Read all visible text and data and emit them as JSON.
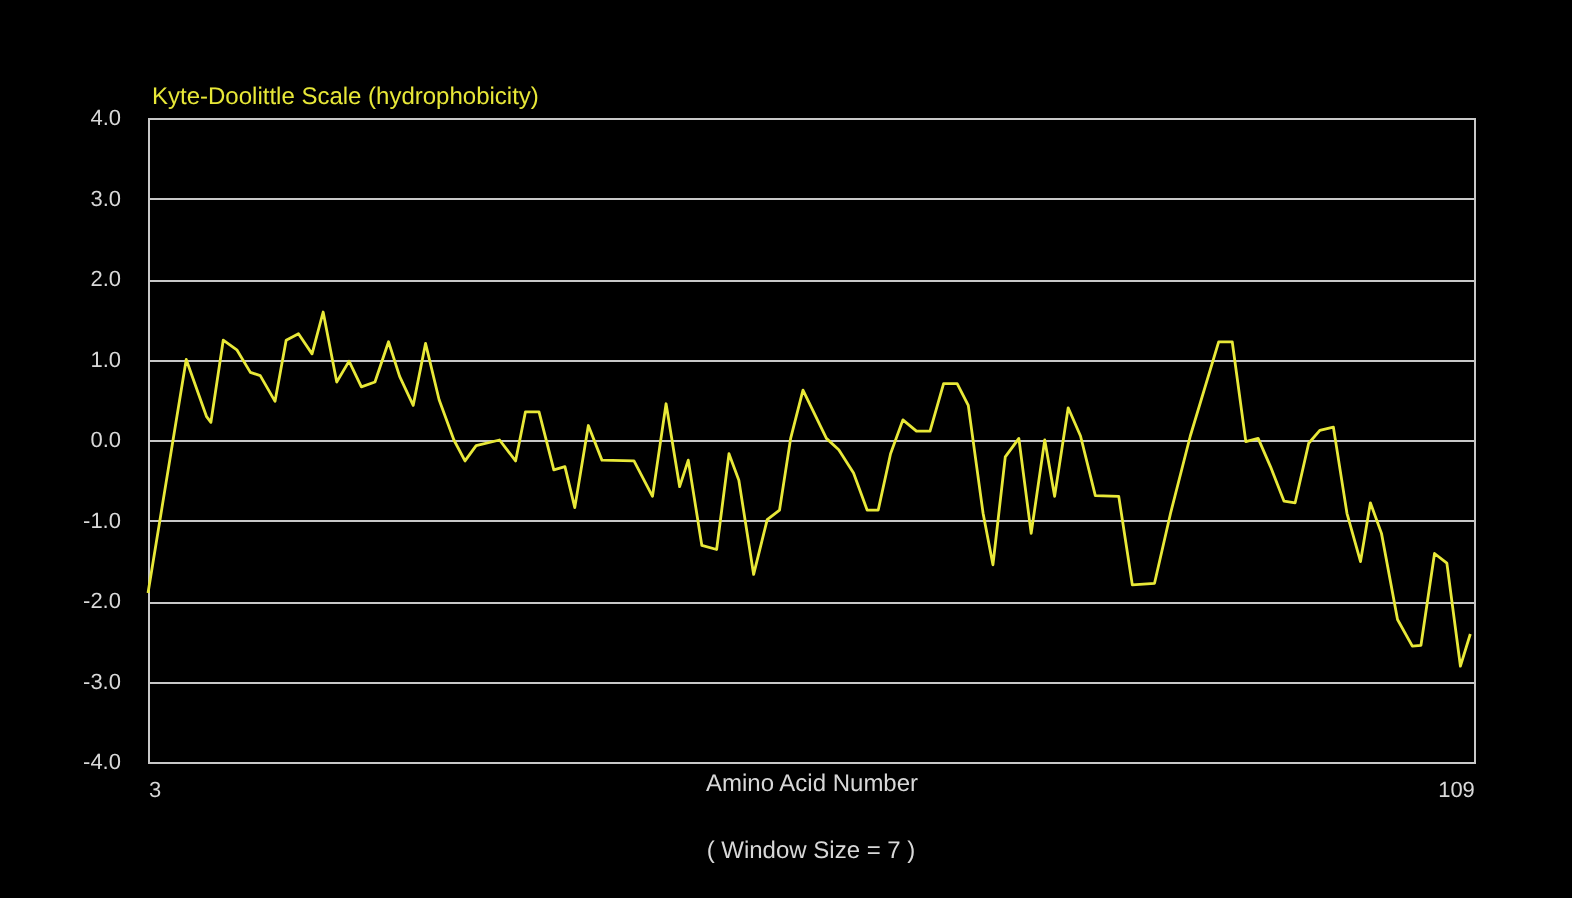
{
  "chart_data": {
    "type": "line",
    "title": "Kyte-Doolittle Scale (hydrophobicity)",
    "xlabel": "Amino Acid Number",
    "annotations": [
      "( Window Size = 7 )"
    ],
    "series": [
      {
        "color": "#e8e838",
        "x": [
          3.0,
          6.1,
          7.75,
          8.1,
          9.1,
          10.2,
          11.3,
          12.1,
          13.3,
          14.2,
          15.2,
          16.3,
          17.2,
          18.3,
          19.3,
          20.3,
          21.4,
          22.5,
          23.4,
          24.5,
          25.5,
          26.6,
          27.8,
          28.7,
          29.6,
          31.5,
          32.8,
          33.6,
          34.7,
          35.9,
          36.8,
          37.6,
          38.7,
          39.8,
          42.4,
          43.9,
          45.0,
          46.1,
          46.8,
          47.9,
          49.1,
          50.1,
          50.9,
          52.1,
          53.2,
          54.2,
          55.1,
          56.1,
          58.0,
          59.0,
          60.2,
          61.3,
          62.2,
          63.2,
          64.2,
          65.3,
          66.4,
          67.5,
          68.6,
          69.5,
          70.7,
          71.5,
          72.5,
          73.6,
          74.6,
          75.7,
          76.5,
          77.6,
          78.6,
          79.8,
          81.7,
          82.8,
          84.6,
          85.9,
          87.5,
          89.8,
          90.9,
          92.0,
          93.0,
          94.0,
          95.1,
          96.0,
          97.1,
          98.0,
          99.1,
          100.2,
          101.3,
          102.1,
          103.0,
          104.3,
          105.5,
          106.2,
          107.3,
          108.3,
          109.4,
          110.2
        ],
        "values": [
          -1.9,
          1.0,
          0.29,
          0.22,
          1.24,
          1.12,
          0.84,
          0.8,
          0.48,
          1.24,
          1.32,
          1.07,
          1.59,
          0.72,
          0.98,
          0.66,
          0.72,
          1.22,
          0.79,
          0.43,
          1.2,
          0.5,
          0.0,
          -0.26,
          -0.07,
          0.0,
          -0.26,
          0.35,
          0.35,
          -0.37,
          -0.33,
          -0.84,
          0.18,
          -0.25,
          -0.26,
          -0.7,
          0.45,
          -0.58,
          -0.25,
          -1.31,
          -1.36,
          -0.17,
          -0.5,
          -1.67,
          -0.99,
          -0.87,
          0.02,
          0.62,
          0.02,
          -0.12,
          -0.41,
          -0.87,
          -0.87,
          -0.17,
          0.25,
          0.11,
          0.11,
          0.7,
          0.7,
          0.43,
          -0.91,
          -1.55,
          -0.21,
          0.02,
          -1.16,
          0.0,
          -0.7,
          0.4,
          0.05,
          -0.69,
          -0.7,
          -1.8,
          -1.78,
          -0.91,
          0.05,
          1.22,
          1.22,
          -0.02,
          0.02,
          -0.33,
          -0.76,
          -0.78,
          -0.04,
          0.12,
          0.16,
          -0.91,
          -1.51,
          -0.78,
          -1.16,
          -2.23,
          -2.56,
          -2.55,
          -1.41,
          -1.53,
          -2.81,
          -2.41
        ]
      }
    ],
    "xlim": [
      3,
      110.5
    ],
    "xticks": [
      3,
      109
    ],
    "ylim": [
      -4,
      4
    ],
    "yticks": [
      {
        "value": -4,
        "label": "-4.0"
      },
      {
        "value": -3,
        "label": "-3.0"
      },
      {
        "value": -2,
        "label": "-2.0"
      },
      {
        "value": -1,
        "label": "-1.0"
      },
      {
        "value": 0,
        "label": "0.0"
      },
      {
        "value": 1,
        "label": "1.0"
      },
      {
        "value": 2,
        "label": "2.0"
      },
      {
        "value": 3,
        "label": "3.0"
      },
      {
        "value": 4,
        "label": "4.0"
      }
    ],
    "grid": "y",
    "line_style": "solid",
    "marker": "none"
  }
}
